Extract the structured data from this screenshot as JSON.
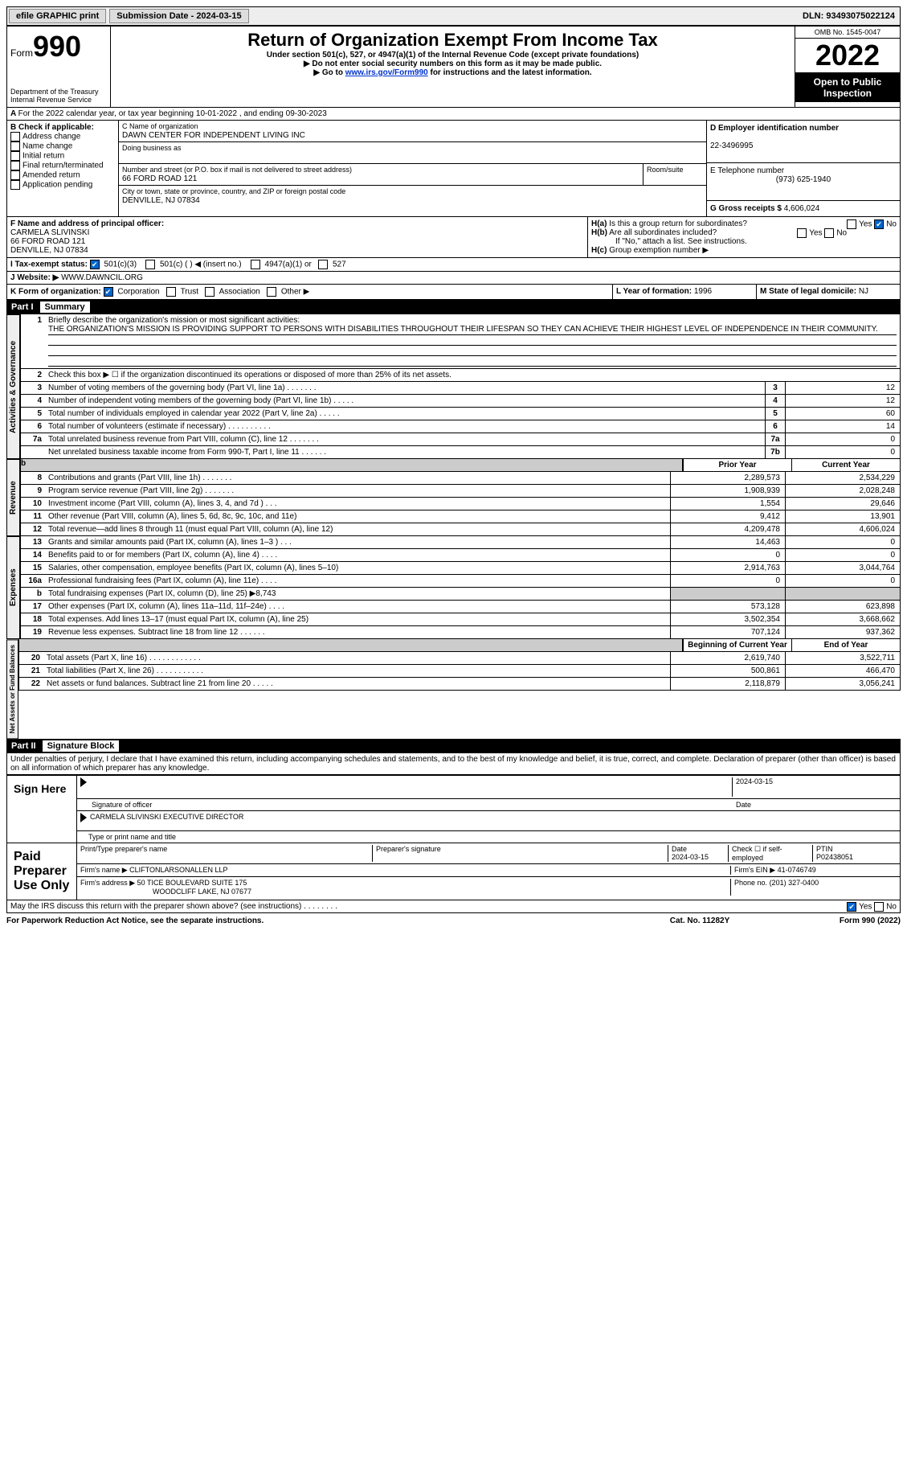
{
  "topbar": {
    "efile": "efile GRAPHIC print",
    "submission": "Submission Date - 2024-03-15",
    "dln": "DLN: 93493075022124"
  },
  "header": {
    "form_word": "Form",
    "form_num": "990",
    "dept": "Department of the Treasury",
    "irs": "Internal Revenue Service",
    "title": "Return of Organization Exempt From Income Tax",
    "sub1": "Under section 501(c), 527, or 4947(a)(1) of the Internal Revenue Code (except private foundations)",
    "sub2": "▶ Do not enter social security numbers on this form as it may be made public.",
    "sub3_pre": "▶ Go to ",
    "sub3_link": "www.irs.gov/Form990",
    "sub3_post": " for instructions and the latest information.",
    "omb": "OMB No. 1545-0047",
    "year": "2022",
    "inspect": "Open to Public Inspection"
  },
  "rowA": "For the 2022 calendar year, or tax year beginning 10-01-2022    , and ending 09-30-2023",
  "boxB": {
    "title": "B Check if applicable:",
    "opts": [
      "Address change",
      "Name change",
      "Initial return",
      "Final return/terminated",
      "Amended return",
      "Application pending"
    ]
  },
  "boxC": {
    "label": "C Name of organization",
    "name": "DAWN CENTER FOR INDEPENDENT LIVING INC",
    "dba": "Doing business as",
    "addr_label": "Number and street (or P.O. box if mail is not delivered to street address)",
    "room": "Room/suite",
    "addr": "66 FORD ROAD 121",
    "city_label": "City or town, state or province, country, and ZIP or foreign postal code",
    "city": "DENVILLE, NJ  07834"
  },
  "boxD": {
    "label": "D Employer identification number",
    "val": "22-3496995"
  },
  "boxE": {
    "label": "E Telephone number",
    "val": "(973) 625-1940"
  },
  "boxG": {
    "label": "G Gross receipts $",
    "val": "4,606,024"
  },
  "boxF": {
    "label": "F  Name and address of principal officer:",
    "name": "CARMELA SLIVINSKI",
    "addr1": "66 FORD ROAD 121",
    "addr2": "DENVILLE, NJ  07834"
  },
  "boxH": {
    "a": "Is this a group return for subordinates?",
    "b": "Are all subordinates included?",
    "note": "If \"No,\" attach a list. See instructions.",
    "c": "Group exemption number ▶"
  },
  "boxI": {
    "label": "I   Tax-exempt status:",
    "o1": "501(c)(3)",
    "o2": "501(c) (  ) ◀ (insert no.)",
    "o3": "4947(a)(1) or",
    "o4": "527"
  },
  "boxJ": {
    "label": "J   Website: ▶",
    "val": "WWW.DAWNCIL.ORG"
  },
  "boxK": {
    "label": "K Form of organization:",
    "o1": "Corporation",
    "o2": "Trust",
    "o3": "Association",
    "o4": "Other ▶"
  },
  "boxL": {
    "label": "L Year of formation:",
    "val": "1996"
  },
  "boxM": {
    "label": "M State of legal domicile:",
    "val": "NJ"
  },
  "part1": {
    "label": "Part I",
    "title": "Summary"
  },
  "tabs": {
    "ag": "Activities & Governance",
    "rev": "Revenue",
    "exp": "Expenses",
    "na": "Net Assets or Fund Balances"
  },
  "l1": {
    "n": "1",
    "t": "Briefly describe the organization's mission or most significant activities:",
    "m": "THE ORGANIZATION'S MISSION IS PROVIDING SUPPORT TO PERSONS WITH DISABILITIES THROUGHOUT THEIR LIFESPAN SO THEY CAN ACHIEVE THEIR HIGHEST LEVEL OF INDEPENDENCE IN THEIR COMMUNITY."
  },
  "l2": {
    "n": "2",
    "t": "Check this box ▶ ☐  if the organization discontinued its operations or disposed of more than 25% of its net assets."
  },
  "l3": {
    "n": "3",
    "t": "Number of voting members of the governing body (Part VI, line 1a)   .    .    .    .    .    .    .",
    "b": "3",
    "v": "12"
  },
  "l4": {
    "n": "4",
    "t": "Number of independent voting members of the governing body (Part VI, line 1b)   .    .    .    .    .",
    "b": "4",
    "v": "12"
  },
  "l5": {
    "n": "5",
    "t": "Total number of individuals employed in calendar year 2022 (Part V, line 2a)   .    .    .    .    .",
    "b": "5",
    "v": "60"
  },
  "l6": {
    "n": "6",
    "t": "Total number of volunteers (estimate if necessary)    .    .    .    .    .    .    .    .    .    .",
    "b": "6",
    "v": "14"
  },
  "l7a": {
    "n": "7a",
    "t": "Total unrelated business revenue from Part VIII, column (C), line 12   .    .    .    .    .    .    .",
    "b": "7a",
    "v": "0"
  },
  "l7b": {
    "n": "",
    "t": "Net unrelated business taxable income from Form 990-T, Part I, line 11   .    .    .    .    .    .",
    "b": "7b",
    "v": "0"
  },
  "cols": {
    "py": "Prior Year",
    "cy": "Current Year"
  },
  "rev": [
    {
      "n": "8",
      "t": "Contributions and grants (Part VIII, line 1h)   .    .    .    .    .    .    .",
      "p": "2,289,573",
      "c": "2,534,229"
    },
    {
      "n": "9",
      "t": "Program service revenue (Part VIII, line 2g)   .    .    .    .    .    .    .",
      "p": "1,908,939",
      "c": "2,028,248"
    },
    {
      "n": "10",
      "t": "Investment income (Part VIII, column (A), lines 3, 4, and 7d )   .    .    .",
      "p": "1,554",
      "c": "29,646"
    },
    {
      "n": "11",
      "t": "Other revenue (Part VIII, column (A), lines 5, 6d, 8c, 9c, 10c, and 11e)",
      "p": "9,412",
      "c": "13,901"
    },
    {
      "n": "12",
      "t": "Total revenue—add lines 8 through 11 (must equal Part VIII, column (A), line 12)",
      "p": "4,209,478",
      "c": "4,606,024"
    }
  ],
  "exp": [
    {
      "n": "13",
      "t": "Grants and similar amounts paid (Part IX, column (A), lines 1–3 )   .    .    .",
      "p": "14,463",
      "c": "0"
    },
    {
      "n": "14",
      "t": "Benefits paid to or for members (Part IX, column (A), line 4)   .    .    .    .",
      "p": "0",
      "c": "0"
    },
    {
      "n": "15",
      "t": "Salaries, other compensation, employee benefits (Part IX, column (A), lines 5–10)",
      "p": "2,914,763",
      "c": "3,044,764"
    },
    {
      "n": "16a",
      "t": "Professional fundraising fees (Part IX, column (A), line 11e)   .    .    .    .",
      "p": "0",
      "c": "0"
    },
    {
      "n": "b",
      "t": "Total fundraising expenses (Part IX, column (D), line 25) ▶8,743",
      "shade": true
    },
    {
      "n": "17",
      "t": "Other expenses (Part IX, column (A), lines 11a–11d, 11f–24e)    .    .    .    .",
      "p": "573,128",
      "c": "623,898"
    },
    {
      "n": "18",
      "t": "Total expenses. Add lines 13–17 (must equal Part IX, column (A), line 25)",
      "p": "3,502,354",
      "c": "3,668,662"
    },
    {
      "n": "19",
      "t": "Revenue less expenses. Subtract line 18 from line 12   .    .    .    .    .    .",
      "p": "707,124",
      "c": "937,362"
    }
  ],
  "cols2": {
    "b": "Beginning of Current Year",
    "e": "End of Year"
  },
  "na": [
    {
      "n": "20",
      "t": "Total assets (Part X, line 16)   .    .    .    .    .    .    .    .    .    .    .    .",
      "p": "2,619,740",
      "c": "3,522,711"
    },
    {
      "n": "21",
      "t": "Total liabilities (Part X, line 26)   .    .    .    .    .    .    .    .    .    .    .",
      "p": "500,861",
      "c": "466,470"
    },
    {
      "n": "22",
      "t": "Net assets or fund balances. Subtract line 21 from line 20    .    .    .    .    .",
      "p": "2,118,879",
      "c": "3,056,241"
    }
  ],
  "part2": {
    "label": "Part II",
    "title": "Signature Block"
  },
  "penalty": "Under penalties of perjury, I declare that I have examined this return, including accompanying schedules and statements, and to the best of my knowledge and belief, it is true, correct, and complete. Declaration of preparer (other than officer) is based on all information of which preparer has any knowledge.",
  "sign": {
    "here": "Sign Here",
    "sig_officer": "Signature of officer",
    "date": "2024-03-15",
    "date_lbl": "Date",
    "name": "CARMELA SLIVINSKI  EXECUTIVE DIRECTOR",
    "name_lbl": "Type or print name and title"
  },
  "paid": {
    "title": "Paid Preparer Use Only",
    "h1": "Print/Type preparer's name",
    "h2": "Preparer's signature",
    "h3": "Date",
    "h3v": "2024-03-15",
    "h4": "Check ☐ if self-employed",
    "h5": "PTIN",
    "h5v": "P02438051",
    "firm_lbl": "Firm's name    ▶",
    "firm": "CLIFTONLARSONALLEN LLP",
    "ein_lbl": "Firm's EIN ▶",
    "ein": "41-0746749",
    "addr_lbl": "Firm's address ▶",
    "addr1": "50 TICE BOULEVARD SUITE 175",
    "addr2": "WOODCLIFF LAKE, NJ  07677",
    "phone_lbl": "Phone no.",
    "phone": "(201) 327-0400"
  },
  "discuss": "May the IRS discuss this return with the preparer shown above? (see instructions)    .    .    .    .    .    .    .    .",
  "yes": "Yes",
  "no": "No",
  "footer": {
    "l": "For Paperwork Reduction Act Notice, see the separate instructions.",
    "c": "Cat. No. 11282Y",
    "r": "Form 990 (2022)"
  }
}
